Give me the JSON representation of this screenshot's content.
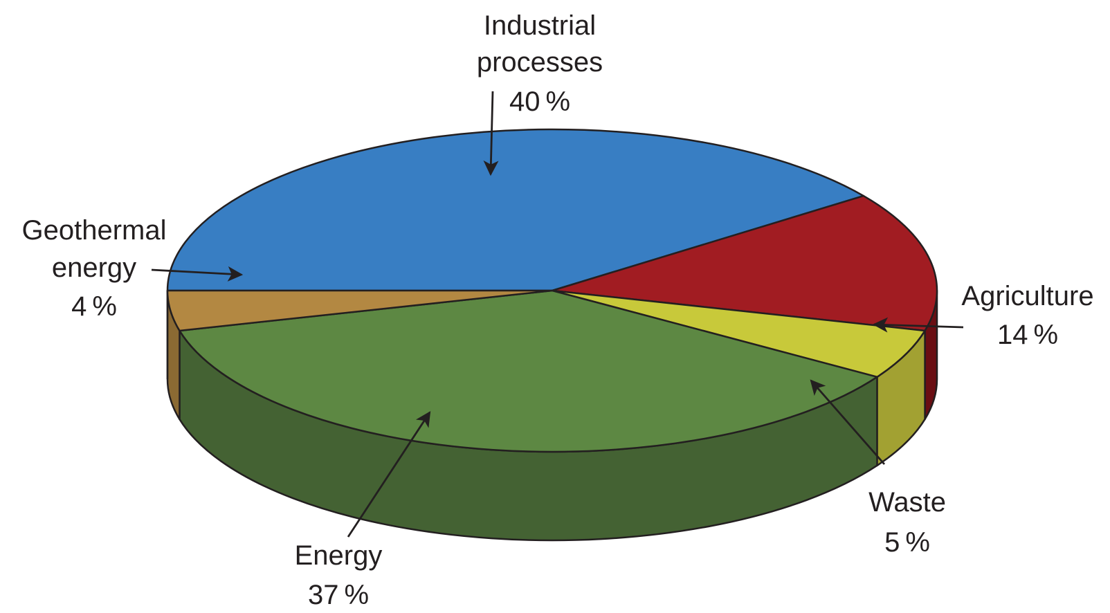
{
  "chart_data": {
    "type": "pie",
    "style": "3d",
    "unit": "%",
    "slices": [
      {
        "key": "industrial",
        "label_lines": [
          "Industrial",
          "processes"
        ],
        "value_text": "40 %",
        "value": 40,
        "color": "#387ec3",
        "side_color": "#2b5f93"
      },
      {
        "key": "agriculture",
        "label_lines": [
          "Agriculture"
        ],
        "value_text": "14 %",
        "value": 14,
        "color": "#a11c22",
        "side_color": "#6a0e13"
      },
      {
        "key": "waste",
        "label_lines": [
          "Waste"
        ],
        "value_text": "5 %",
        "value": 5,
        "color": "#c8c93a",
        "side_color": "#a2a132"
      },
      {
        "key": "energy",
        "label_lines": [
          "Energy"
        ],
        "value_text": "37 %",
        "value": 37,
        "color": "#5d8843",
        "side_color": "#446233"
      },
      {
        "key": "geothermal",
        "label_lines": [
          "Geothermal",
          "energy"
        ],
        "value_text": "4 %",
        "value": 4,
        "color": "#b38842",
        "side_color": "#8b6a33"
      }
    ]
  }
}
